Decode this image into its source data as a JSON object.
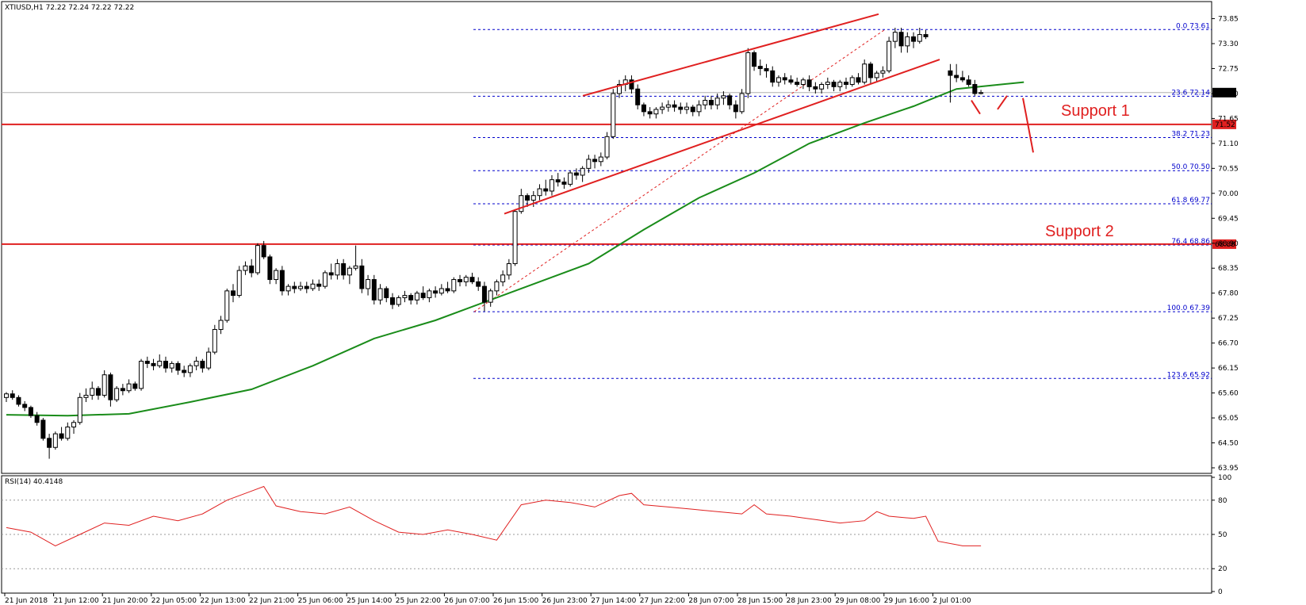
{
  "header": {
    "symbol_info": "XTIUSD,H1  72.22 72.24 72.22 72.22",
    "rsi_info": "RSI(14) 40.4148"
  },
  "colors": {
    "bull": "#ffffff",
    "bear": "#000000",
    "ma": "#1a8c1a",
    "rsi": "#e02020",
    "fib": "#0000cc",
    "support": "#e02020",
    "channel": "#e02020"
  },
  "annotations": {
    "support1": "Support 1",
    "support2": "Support 2"
  },
  "chart_data": {
    "type": "candlestick",
    "price_axis": {
      "ticks": [
        "73.85",
        "73.30",
        "72.75",
        "72.20",
        "71.65",
        "71.10",
        "70.55",
        "70.00",
        "69.45",
        "68.90",
        "68.35",
        "67.80",
        "67.25",
        "66.70",
        "66.15",
        "65.60",
        "65.05",
        "64.50",
        "63.95"
      ],
      "ylim": [
        63.8,
        74.2
      ]
    },
    "time_axis": {
      "labels": [
        "21 Jun 2018",
        "21 Jun 12:00",
        "21 Jun 20:00",
        "22 Jun 05:00",
        "22 Jun 13:00",
        "22 Jun 21:00",
        "25 Jun 06:00",
        "25 Jun 14:00",
        "25 Jun 22:00",
        "26 Jun 07:00",
        "26 Jun 15:00",
        "26 Jun 23:00",
        "27 Jun 14:00",
        "27 Jun 22:00",
        "28 Jun 07:00",
        "28 Jun 15:00",
        "28 Jun 23:00",
        "29 Jun 08:00",
        "29 Jun 16:00",
        "2 Jul 01:00"
      ]
    },
    "current_price": "72.22",
    "support_levels": [
      {
        "name": "Support 1",
        "value": 71.52,
        "label": "71.52"
      },
      {
        "name": "Support 2",
        "value": 68.88,
        "label": "68.88"
      }
    ],
    "fibonacci": [
      {
        "level": "0.0",
        "value": 73.61,
        "label": "0.0 73.61"
      },
      {
        "level": "23.6",
        "value": 72.14,
        "label": "23.6 72.14"
      },
      {
        "level": "38.2",
        "value": 71.23,
        "label": "38.2 71.23"
      },
      {
        "level": "50.0",
        "value": 70.5,
        "label": "50.0 70.50"
      },
      {
        "level": "61.8",
        "value": 69.77,
        "label": "61.8 69.77"
      },
      {
        "level": "76.4",
        "value": 68.86,
        "label": "76.4 68.86"
      },
      {
        "level": "100.0",
        "value": 67.39,
        "label": "100.0 67.39"
      },
      {
        "level": "123.6",
        "value": 65.92,
        "label": "123.6 65.92"
      }
    ],
    "candles": [
      [
        0,
        65.5,
        65.62,
        65.4,
        65.58
      ],
      [
        1,
        65.58,
        65.66,
        65.45,
        65.5
      ],
      [
        2,
        65.5,
        65.55,
        65.3,
        65.35
      ],
      [
        3,
        65.35,
        65.42,
        65.2,
        65.28
      ],
      [
        4,
        65.28,
        65.32,
        65.05,
        65.1
      ],
      [
        5,
        65.1,
        65.18,
        64.88,
        64.95
      ],
      [
        6,
        65.0,
        65.05,
        64.55,
        64.6
      ],
      [
        7,
        64.6,
        64.7,
        64.15,
        64.4
      ],
      [
        8,
        64.4,
        64.75,
        64.35,
        64.7
      ],
      [
        9,
        64.7,
        64.85,
        64.55,
        64.6
      ],
      [
        10,
        64.6,
        64.95,
        64.55,
        64.85
      ],
      [
        11,
        64.85,
        65.0,
        64.7,
        64.95
      ],
      [
        12,
        64.95,
        65.6,
        64.9,
        65.5
      ],
      [
        13,
        65.5,
        65.7,
        65.4,
        65.55
      ],
      [
        14,
        65.55,
        65.85,
        65.45,
        65.7
      ],
      [
        15,
        65.7,
        65.75,
        65.45,
        65.55
      ],
      [
        16,
        65.55,
        66.1,
        65.5,
        66.0
      ],
      [
        17,
        66.0,
        66.05,
        65.3,
        65.45
      ],
      [
        18,
        65.45,
        65.75,
        65.4,
        65.7
      ],
      [
        19,
        65.7,
        65.8,
        65.55,
        65.65
      ],
      [
        20,
        65.65,
        65.9,
        65.6,
        65.8
      ],
      [
        21,
        65.8,
        65.85,
        65.65,
        65.7
      ],
      [
        22,
        65.7,
        66.35,
        65.65,
        66.3
      ],
      [
        23,
        66.3,
        66.4,
        66.15,
        66.25
      ],
      [
        24,
        66.25,
        66.35,
        66.1,
        66.2
      ],
      [
        25,
        66.2,
        66.45,
        66.15,
        66.3
      ],
      [
        26,
        66.3,
        66.4,
        66.05,
        66.15
      ],
      [
        27,
        66.15,
        66.3,
        66.05,
        66.25
      ],
      [
        28,
        66.25,
        66.3,
        66.0,
        66.1
      ],
      [
        29,
        66.1,
        66.2,
        65.95,
        66.05
      ],
      [
        30,
        66.05,
        66.25,
        65.95,
        66.2
      ],
      [
        31,
        66.2,
        66.4,
        66.1,
        66.3
      ],
      [
        32,
        66.3,
        66.35,
        66.05,
        66.15
      ],
      [
        33,
        66.15,
        66.6,
        66.1,
        66.5
      ],
      [
        34,
        66.5,
        67.1,
        66.45,
        67.0
      ],
      [
        35,
        67.0,
        67.3,
        66.9,
        67.2
      ],
      [
        36,
        67.2,
        67.9,
        67.15,
        67.85
      ],
      [
        37,
        67.85,
        68.0,
        67.6,
        67.75
      ],
      [
        38,
        67.75,
        68.4,
        67.7,
        68.3
      ],
      [
        39,
        68.3,
        68.5,
        68.2,
        68.4
      ],
      [
        40,
        68.4,
        68.55,
        68.15,
        68.25
      ],
      [
        41,
        68.25,
        68.9,
        68.2,
        68.85
      ],
      [
        42,
        68.85,
        68.95,
        68.55,
        68.6
      ],
      [
        43,
        68.6,
        68.65,
        68.0,
        68.1
      ],
      [
        44,
        68.1,
        68.35,
        68.0,
        68.3
      ],
      [
        45,
        68.3,
        68.4,
        67.75,
        67.85
      ],
      [
        46,
        67.85,
        68.0,
        67.75,
        67.95
      ],
      [
        47,
        67.95,
        68.05,
        67.8,
        67.9
      ],
      [
        48,
        67.9,
        68.05,
        67.85,
        67.95
      ],
      [
        49,
        67.95,
        68.05,
        67.8,
        67.9
      ],
      [
        50,
        67.9,
        68.1,
        67.85,
        68.0
      ],
      [
        51,
        68.0,
        68.1,
        67.85,
        67.95
      ],
      [
        52,
        67.95,
        68.3,
        67.9,
        68.25
      ],
      [
        53,
        68.25,
        68.45,
        68.1,
        68.2
      ],
      [
        54,
        68.2,
        68.55,
        68.1,
        68.45
      ],
      [
        55,
        68.45,
        68.55,
        68.1,
        68.2
      ],
      [
        56,
        68.2,
        68.4,
        68.0,
        68.35
      ],
      [
        57,
        68.35,
        68.85,
        68.3,
        68.4
      ],
      [
        58,
        68.4,
        68.55,
        67.8,
        67.9
      ],
      [
        59,
        67.9,
        68.2,
        67.75,
        68.1
      ],
      [
        60,
        68.1,
        68.2,
        67.55,
        67.65
      ],
      [
        61,
        67.65,
        68.0,
        67.55,
        67.9
      ],
      [
        62,
        67.9,
        67.95,
        67.6,
        67.7
      ],
      [
        63,
        67.7,
        67.8,
        67.45,
        67.55
      ],
      [
        64,
        67.55,
        67.75,
        67.5,
        67.7
      ],
      [
        65,
        67.7,
        67.85,
        67.6,
        67.75
      ],
      [
        66,
        67.75,
        67.8,
        67.55,
        67.65
      ],
      [
        67,
        67.65,
        67.85,
        67.55,
        67.8
      ],
      [
        68,
        67.8,
        67.95,
        67.65,
        67.7
      ],
      [
        69,
        67.7,
        67.9,
        67.6,
        67.85
      ],
      [
        70,
        67.85,
        67.95,
        67.7,
        67.8
      ],
      [
        71,
        67.8,
        68.0,
        67.75,
        67.9
      ],
      [
        72,
        67.9,
        68.05,
        67.8,
        67.85
      ],
      [
        73,
        67.85,
        68.15,
        67.8,
        68.1
      ],
      [
        74,
        68.1,
        68.2,
        67.95,
        68.05
      ],
      [
        75,
        68.05,
        68.2,
        67.95,
        68.15
      ],
      [
        76,
        68.15,
        68.25,
        68.0,
        68.05
      ],
      [
        77,
        68.05,
        68.15,
        67.85,
        67.95
      ],
      [
        78,
        67.95,
        68.05,
        67.4,
        67.6
      ],
      [
        79,
        67.6,
        67.9,
        67.5,
        67.85
      ],
      [
        80,
        67.85,
        68.1,
        67.75,
        68.05
      ],
      [
        81,
        68.05,
        68.3,
        67.95,
        68.2
      ],
      [
        82,
        68.2,
        68.55,
        68.1,
        68.45
      ],
      [
        83,
        68.45,
        69.65,
        68.4,
        69.6
      ],
      [
        84,
        69.6,
        70.1,
        69.55,
        69.95
      ],
      [
        85,
        69.95,
        70.0,
        69.7,
        69.85
      ],
      [
        86,
        69.85,
        70.05,
        69.7,
        69.95
      ],
      [
        87,
        69.95,
        70.2,
        69.85,
        70.1
      ],
      [
        88,
        70.1,
        70.3,
        69.95,
        70.05
      ],
      [
        89,
        70.05,
        70.4,
        69.95,
        70.3
      ],
      [
        90,
        70.3,
        70.45,
        70.15,
        70.25
      ],
      [
        91,
        70.25,
        70.35,
        70.1,
        70.2
      ],
      [
        92,
        70.2,
        70.5,
        70.15,
        70.45
      ],
      [
        93,
        70.45,
        70.55,
        70.3,
        70.4
      ],
      [
        94,
        70.4,
        70.6,
        70.25,
        70.55
      ],
      [
        95,
        70.55,
        70.85,
        70.45,
        70.75
      ],
      [
        96,
        70.75,
        70.85,
        70.55,
        70.7
      ],
      [
        97,
        70.7,
        70.9,
        70.6,
        70.8
      ],
      [
        98,
        70.8,
        71.35,
        70.75,
        71.25
      ],
      [
        99,
        71.25,
        72.3,
        71.2,
        72.2
      ],
      [
        100,
        72.2,
        72.5,
        72.1,
        72.4
      ],
      [
        101,
        72.4,
        72.6,
        72.25,
        72.5
      ],
      [
        102,
        72.5,
        72.6,
        72.2,
        72.3
      ],
      [
        103,
        72.3,
        72.4,
        71.85,
        71.95
      ],
      [
        104,
        71.95,
        72.0,
        71.7,
        71.8
      ],
      [
        105,
        71.8,
        71.9,
        71.65,
        71.75
      ],
      [
        106,
        71.75,
        71.9,
        71.65,
        71.85
      ],
      [
        107,
        71.85,
        72.0,
        71.75,
        71.9
      ],
      [
        108,
        71.9,
        72.05,
        71.8,
        71.95
      ],
      [
        109,
        71.95,
        72.05,
        71.8,
        71.9
      ],
      [
        110,
        71.9,
        72.0,
        71.75,
        71.85
      ],
      [
        111,
        71.85,
        72.0,
        71.75,
        71.9
      ],
      [
        112,
        71.9,
        71.95,
        71.7,
        71.8
      ],
      [
        113,
        71.8,
        72.05,
        71.7,
        71.95
      ],
      [
        114,
        71.95,
        72.15,
        71.85,
        72.05
      ],
      [
        115,
        72.05,
        72.15,
        71.85,
        71.95
      ],
      [
        116,
        71.95,
        72.2,
        71.85,
        72.1
      ],
      [
        117,
        72.1,
        72.25,
        71.95,
        72.15
      ],
      [
        118,
        72.15,
        72.2,
        71.85,
        71.95
      ],
      [
        119,
        71.95,
        72.05,
        71.65,
        71.8
      ],
      [
        120,
        71.8,
        72.3,
        71.75,
        72.2
      ],
      [
        121,
        72.2,
        73.2,
        72.1,
        73.1
      ],
      [
        122,
        73.1,
        73.15,
        72.7,
        72.8
      ],
      [
        123,
        72.8,
        72.95,
        72.6,
        72.75
      ],
      [
        124,
        72.75,
        72.85,
        72.55,
        72.7
      ],
      [
        125,
        72.7,
        72.8,
        72.35,
        72.45
      ],
      [
        126,
        72.45,
        72.6,
        72.35,
        72.55
      ],
      [
        127,
        72.55,
        72.65,
        72.4,
        72.5
      ],
      [
        128,
        72.5,
        72.6,
        72.4,
        72.45
      ],
      [
        129,
        72.45,
        72.55,
        72.35,
        72.4
      ],
      [
        130,
        72.4,
        72.55,
        72.3,
        72.5
      ],
      [
        131,
        72.5,
        72.6,
        72.25,
        72.35
      ],
      [
        132,
        72.35,
        72.45,
        72.2,
        72.3
      ],
      [
        133,
        72.3,
        72.45,
        72.2,
        72.4
      ],
      [
        134,
        72.4,
        72.55,
        72.3,
        72.45
      ],
      [
        135,
        72.45,
        72.5,
        72.25,
        72.35
      ],
      [
        136,
        72.35,
        72.5,
        72.25,
        72.45
      ],
      [
        137,
        72.45,
        72.55,
        72.3,
        72.4
      ],
      [
        138,
        72.4,
        72.6,
        72.35,
        72.55
      ],
      [
        139,
        72.55,
        72.65,
        72.4,
        72.45
      ],
      [
        140,
        72.45,
        72.95,
        72.4,
        72.85
      ],
      [
        141,
        72.85,
        72.9,
        72.4,
        72.55
      ],
      [
        142,
        72.55,
        72.7,
        72.45,
        72.65
      ],
      [
        143,
        72.65,
        72.8,
        72.55,
        72.7
      ],
      [
        144,
        72.7,
        73.45,
        72.65,
        73.35
      ],
      [
        145,
        73.35,
        73.65,
        73.2,
        73.55
      ],
      [
        146,
        73.55,
        73.65,
        73.1,
        73.25
      ],
      [
        147,
        73.25,
        73.55,
        73.1,
        73.45
      ],
      [
        148,
        73.45,
        73.55,
        73.2,
        73.35
      ],
      [
        149,
        73.35,
        73.65,
        73.3,
        73.5
      ],
      [
        150,
        73.5,
        73.6,
        73.4,
        73.45
      ],
      [
        154,
        72.7,
        72.85,
        72.0,
        72.6
      ],
      [
        155,
        72.6,
        72.85,
        72.45,
        72.55
      ],
      [
        156,
        72.55,
        72.7,
        72.45,
        72.5
      ],
      [
        157,
        72.5,
        72.6,
        72.35,
        72.4
      ],
      [
        158,
        72.4,
        72.5,
        72.15,
        72.2
      ],
      [
        159,
        72.2,
        72.28,
        72.18,
        72.22
      ]
    ],
    "ma_series": [
      [
        0,
        65.12
      ],
      [
        10,
        65.1
      ],
      [
        20,
        65.14
      ],
      [
        30,
        65.4
      ],
      [
        40,
        65.68
      ],
      [
        50,
        66.2
      ],
      [
        60,
        66.8
      ],
      [
        70,
        67.2
      ],
      [
        78,
        67.6
      ],
      [
        85,
        67.95
      ],
      [
        95,
        68.45
      ],
      [
        104,
        69.2
      ],
      [
        113,
        69.9
      ],
      [
        122,
        70.45
      ],
      [
        131,
        71.1
      ],
      [
        140,
        71.55
      ],
      [
        148,
        71.92
      ],
      [
        155,
        72.3
      ],
      [
        166,
        72.45
      ]
    ],
    "rsi_series": [
      [
        0,
        56
      ],
      [
        4,
        52
      ],
      [
        8,
        40
      ],
      [
        12,
        50
      ],
      [
        16,
        60
      ],
      [
        20,
        58
      ],
      [
        24,
        66
      ],
      [
        28,
        62
      ],
      [
        32,
        68
      ],
      [
        36,
        80
      ],
      [
        40,
        88
      ],
      [
        42,
        92
      ],
      [
        44,
        75
      ],
      [
        48,
        70
      ],
      [
        52,
        68
      ],
      [
        56,
        74
      ],
      [
        60,
        62
      ],
      [
        64,
        52
      ],
      [
        68,
        50
      ],
      [
        72,
        54
      ],
      [
        76,
        50
      ],
      [
        80,
        45
      ],
      [
        84,
        76
      ],
      [
        88,
        80
      ],
      [
        92,
        78
      ],
      [
        96,
        74
      ],
      [
        100,
        84
      ],
      [
        102,
        86
      ],
      [
        104,
        76
      ],
      [
        108,
        74
      ],
      [
        112,
        72
      ],
      [
        116,
        70
      ],
      [
        120,
        68
      ],
      [
        122,
        76
      ],
      [
        124,
        68
      ],
      [
        128,
        66
      ],
      [
        132,
        63
      ],
      [
        136,
        60
      ],
      [
        140,
        62
      ],
      [
        142,
        70
      ],
      [
        144,
        66
      ],
      [
        148,
        64
      ],
      [
        150,
        66
      ],
      [
        152,
        44
      ],
      [
        156,
        40
      ],
      [
        159,
        40
      ]
    ],
    "rsi_axis": {
      "ticks": [
        "100",
        "80",
        "50",
        "20",
        "0"
      ],
      "ylim": [
        0,
        100
      ]
    }
  }
}
